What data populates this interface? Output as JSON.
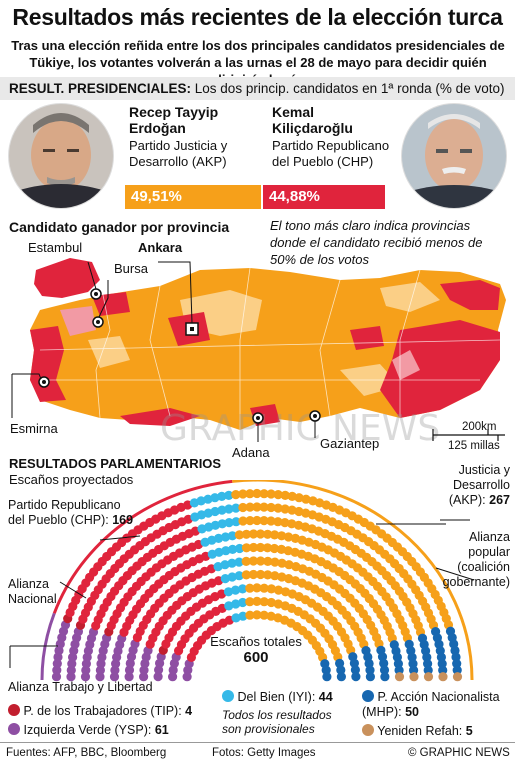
{
  "header": {
    "title": "Resultados más recientes de la elección turca",
    "subtitle": "Tras una elección reñida entre los dos principales candidatos presidenciales de Tükiye, los votantes volverán a las urnas el 28 de mayo para decidir quién dirigirá al país"
  },
  "presidential": {
    "band_bold": "RESULT. PRESIDENCIALES:",
    "band_text": " Los dos princip. candidatos en 1ª ronda (% de voto)",
    "candidates": [
      {
        "name": "Recep Tayyip Erdoğan",
        "party": "Partido Justicia y Desarrollo (AKP)",
        "percent_label": "49,51%",
        "value": 49.51,
        "color": "#f6a01a"
      },
      {
        "name": "Kemal Kiliçdaroğlu",
        "party": "Partido Republicano del Pueblo (CHP)",
        "percent_label": "44,88%",
        "value": 44.88,
        "color": "#e0243c"
      }
    ]
  },
  "map": {
    "title": "Candidato ganador por provincia",
    "note": "El tono más claro indica provincias donde el candidato recibió menos de 50% de los votos",
    "cities": {
      "istanbul": "Estambul",
      "bursa": "Bursa",
      "ankara": "Ankara",
      "izmir": "Esmirna",
      "adana": "Adana",
      "gaziantep": "Gaziantep"
    },
    "scale_km": "200km",
    "scale_mi": "125 millas",
    "watermark": "GRAPHIC NEWS",
    "colors": {
      "akp": "#f6a01a",
      "akp_light": "#fbcf86",
      "chp": "#e0243c",
      "chp_light": "#f29aa4"
    }
  },
  "parliament": {
    "title": "RESULTADOS PARLAMENTARIOS",
    "subtitle": "Escaños proyectados",
    "total_label": "Escaños totales",
    "total": "600",
    "labels": {
      "akp_name": "Justicia y Desarrollo (AKP):",
      "akp_seats": "267",
      "chp_name": "Partido Republicano del Pueblo (CHP):",
      "chp_seats": "169",
      "alliance_popular": "Alianza popular (coalición gobernante)",
      "alliance_national": "Alianza Nacional",
      "alliance_labour": "Alianza Trabajo y Libertad"
    },
    "legend": [
      {
        "name": "P. de los Trabajadores (TIP):",
        "seats": "4",
        "color": "#c21e2e"
      },
      {
        "name": "Izquierda Verde (YSP):",
        "seats": "61",
        "color": "#8e4fa3"
      },
      {
        "name": "Del Bien (IYI):",
        "seats": "44",
        "color": "#35b9e8"
      },
      {
        "name": "P. Acción Nacionalista (MHP):",
        "seats": "50",
        "color": "#1767b0"
      },
      {
        "name": "Yeniden Refah:",
        "seats": "5",
        "color": "#c9915c"
      }
    ],
    "provisional_note": "Todos los resultados son provisionales",
    "seat_colors": {
      "akp": "#f6a01a",
      "chp": "#e0243c"
    }
  },
  "footer": {
    "sources": "Fuentes: AFP, BBC, Bloomberg",
    "photos": "Fotos: Getty Images",
    "credit": "© GRAPHIC NEWS"
  }
}
